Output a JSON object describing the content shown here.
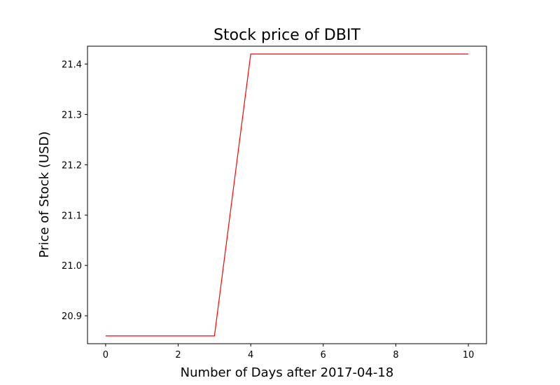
{
  "chart_data": {
    "type": "line",
    "title": "Stock price of DBIT",
    "xlabel": "Number of Days after 2017-04-18",
    "ylabel": "Price of Stock (USD)",
    "xlim": [
      -0.5,
      10.5
    ],
    "ylim": [
      20.8445,
      21.4355
    ],
    "x_ticks": [
      0,
      2,
      4,
      6,
      8,
      10
    ],
    "x_tick_labels": [
      "0",
      "2",
      "4",
      "6",
      "8",
      "10"
    ],
    "y_ticks": [
      20.9,
      21.0,
      21.1,
      21.2,
      21.3,
      21.4
    ],
    "y_tick_labels": [
      "20.9",
      "21.0",
      "21.1",
      "21.2",
      "21.3",
      "21.4"
    ],
    "grid": false,
    "series": [
      {
        "color": "#ff0000",
        "x": [
          0,
          1,
          2,
          3,
          4,
          5,
          6,
          7,
          8,
          9,
          10
        ],
        "y": [
          20.86,
          20.86,
          20.86,
          20.86,
          21.42,
          21.42,
          21.42,
          21.42,
          21.42,
          21.42,
          21.42
        ]
      }
    ]
  }
}
